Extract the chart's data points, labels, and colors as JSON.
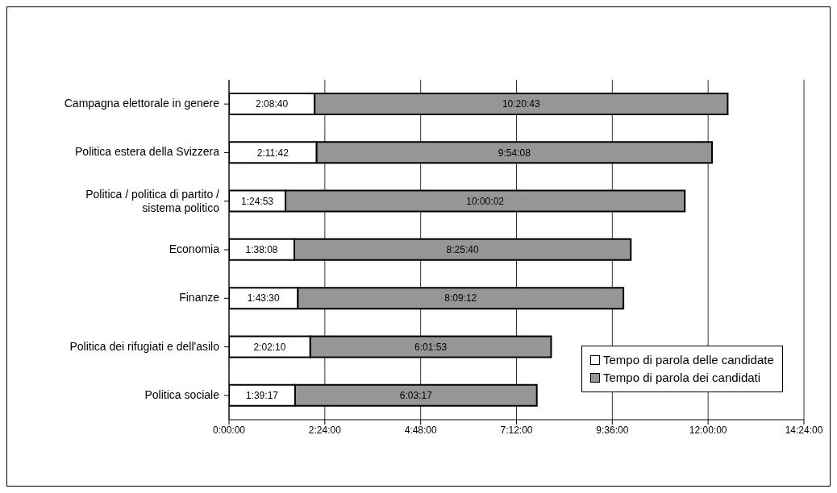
{
  "chart_data": {
    "type": "bar",
    "orientation": "horizontal",
    "stacked": true,
    "categories": [
      "Campagna elettorale in genere",
      "Politica estera della Svizzera",
      "Politica / politica di partito / sistema politico",
      "Economia",
      "Finanze",
      "Politica dei rifugiati e dell'asilo",
      "Politica sociale"
    ],
    "series": [
      {
        "name": "Tempo di parola delle candidate",
        "color": "#ffffff",
        "values": [
          2.1444,
          2.195,
          1.4147,
          1.6356,
          1.725,
          2.0361,
          1.6547
        ],
        "value_labels": [
          "2:08:40",
          "2:11:42",
          "1:24:53",
          "1:38:08",
          "1:43:30",
          "2:02:10",
          "1:39:17"
        ]
      },
      {
        "name": "Tempo di parola dei candidati",
        "color": "#969696",
        "values": [
          10.3453,
          9.9022,
          10.0006,
          8.4278,
          8.1533,
          6.0314,
          6.0547
        ],
        "value_labels": [
          "10:20:43",
          "9:54:08",
          "10:00:02",
          "8:25:40",
          "8:09:12",
          "6:01:53",
          "6:03:17"
        ]
      }
    ],
    "xlim": [
      0,
      14.4
    ],
    "xticks": [
      {
        "value": 0,
        "label": "0:00:00"
      },
      {
        "value": 2.4,
        "label": "2:24:00"
      },
      {
        "value": 4.8,
        "label": "4:48:00"
      },
      {
        "value": 7.2,
        "label": "7:12:00"
      },
      {
        "value": 9.6,
        "label": "9:36:00"
      },
      {
        "value": 12,
        "label": "12:00:00"
      },
      {
        "value": 14.4,
        "label": "14:24:00"
      }
    ],
    "grid": "x",
    "legend": "bottom right"
  }
}
